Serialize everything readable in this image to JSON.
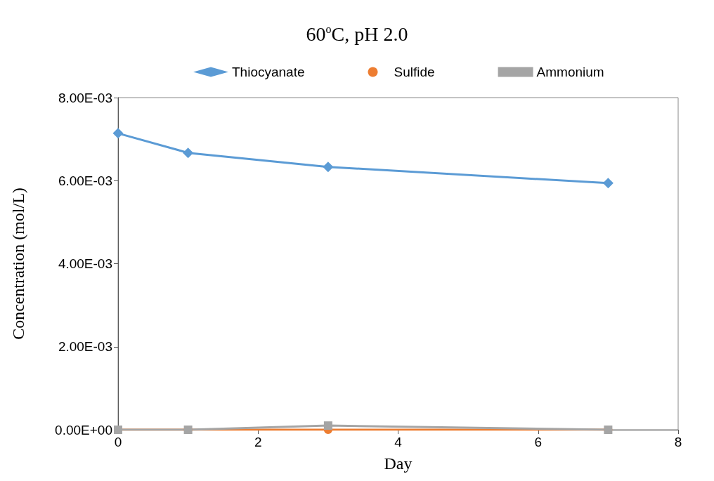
{
  "chart_data": {
    "type": "line",
    "title": "60$^{o}$C, pH 2.0",
    "xlabel": "Day",
    "ylabel": "Concentration (mol/L)",
    "x": [
      0,
      1,
      3,
      7
    ],
    "series": [
      {
        "name": "Thiocyanate",
        "color": "#5b9bd5",
        "marker": "diamond",
        "values": [
          0.00714,
          0.00667,
          0.00633,
          0.00594
        ]
      },
      {
        "name": "Sulfide",
        "color": "#ed7d31",
        "marker": "circle",
        "values": [
          0,
          0,
          0,
          0
        ]
      },
      {
        "name": "Ammonium",
        "color": "#a5a5a5",
        "marker": "square",
        "values": [
          0,
          0,
          0.0001,
          0
        ]
      }
    ],
    "xlim": [
      0,
      8
    ],
    "xticks": [
      0,
      2,
      4,
      6,
      8
    ],
    "ylim": [
      0,
      0.008
    ],
    "yticks": [
      {
        "value": 0,
        "label": "0.00E+00"
      },
      {
        "value": 0.002,
        "label": "2.00E-03"
      },
      {
        "value": 0.004,
        "label": "4.00E-03"
      },
      {
        "value": 0.006,
        "label": "6.00E-03"
      },
      {
        "value": 0.008,
        "label": "8.00E-03"
      }
    ],
    "grid": false,
    "legend": "top",
    "line_style": "solid"
  }
}
